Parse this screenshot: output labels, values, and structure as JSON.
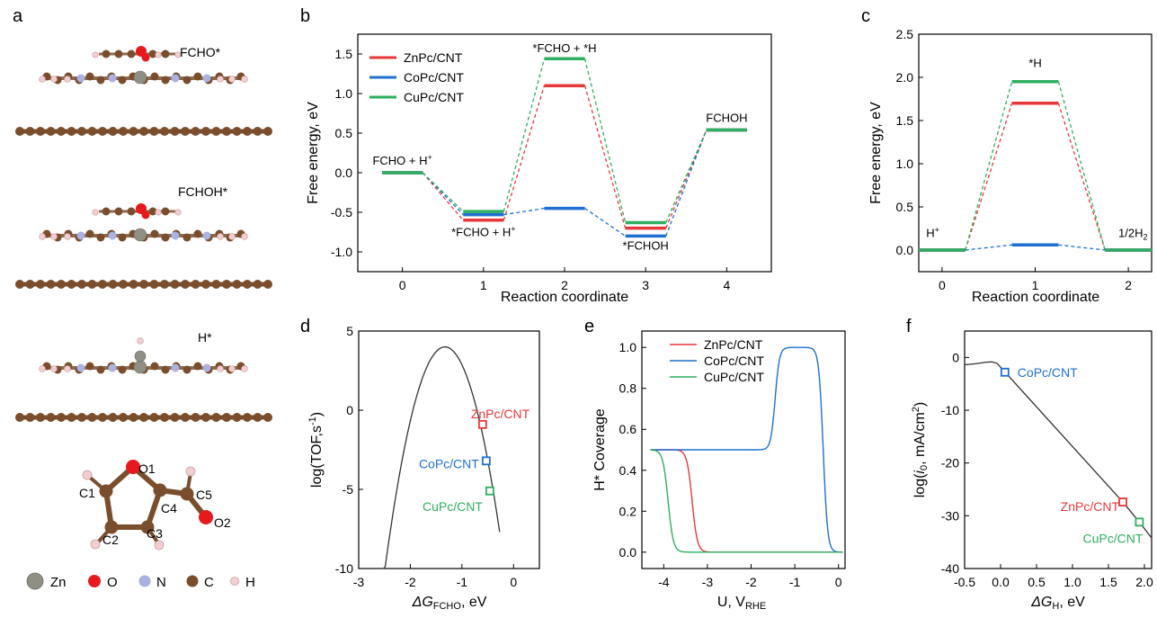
{
  "panel_letters": {
    "a": "a",
    "b": "b",
    "c": "c",
    "d": "d",
    "e": "e",
    "f": "f"
  },
  "colors": {
    "zn": "#e8373a",
    "co": "#1f6fd1",
    "cu": "#2fae5f",
    "atom_c": "#7a4e2d",
    "atom_o": "#e8191d",
    "atom_n": "#a9b2e0",
    "atom_h": "#f3cdd0",
    "atom_zn": "#8f8f86",
    "axis": "#000000",
    "curve": "#333333"
  },
  "structures": {
    "labels": [
      "FCHO*",
      "FCHOH*",
      "H*"
    ],
    "molecule_atoms": [
      "O1",
      "C1",
      "C4",
      "C5",
      "O2",
      "C2",
      "C3"
    ],
    "legend": [
      {
        "label": "Zn",
        "color_key": "atom_zn"
      },
      {
        "label": "O",
        "color_key": "atom_o"
      },
      {
        "label": "N",
        "color_key": "atom_n"
      },
      {
        "label": "C",
        "color_key": "atom_c"
      },
      {
        "label": "H",
        "color_key": "atom_h"
      }
    ]
  },
  "chart_data": [
    {
      "id": "b",
      "type": "line",
      "subtype": "energy-profile",
      "xlabel": "Reaction coordinate",
      "ylabel": "Free energy, eV",
      "xlim": [
        -0.55,
        4.55
      ],
      "ylim": [
        -1.25,
        1.75
      ],
      "xticks": [
        0,
        1,
        2,
        3,
        4
      ],
      "yticks": [
        -1.0,
        -0.5,
        0.0,
        0.5,
        1.0,
        1.5
      ],
      "ytick_labels": [
        "-1.0",
        "-0.5",
        "0.0",
        "0.5",
        "1.0",
        "1.5"
      ],
      "states": [
        0,
        1,
        2,
        3,
        4
      ],
      "series": [
        {
          "name": "ZnPc/CNT",
          "color_key": "zn",
          "values": [
            0.0,
            -0.6,
            1.1,
            -0.7,
            0.54
          ]
        },
        {
          "name": "CoPc/CNT",
          "color_key": "co",
          "values": [
            0.0,
            -0.53,
            -0.45,
            -0.8,
            0.54
          ]
        },
        {
          "name": "CuPc/CNT",
          "color_key": "cu",
          "values": [
            0.0,
            -0.49,
            1.44,
            -0.63,
            0.54
          ]
        }
      ],
      "annotations": [
        {
          "text": "FCHO + H",
          "sup": "+",
          "x": 0,
          "y": 0.1
        },
        {
          "text": "*FCHO + H",
          "sup": "+",
          "x": 1,
          "y": -0.8
        },
        {
          "text": "*FCHO + *H",
          "sup": "",
          "x": 2,
          "y": 1.52
        },
        {
          "text": "*FCHOH",
          "sup": "",
          "x": 3,
          "y": -0.97
        },
        {
          "text": "FCHOH",
          "sup": "",
          "x": 4,
          "y": 0.64
        }
      ]
    },
    {
      "id": "c",
      "type": "line",
      "subtype": "energy-profile",
      "xlabel": "Reaction coordinate",
      "ylabel": "Free energy, eV",
      "xlim": [
        -0.25,
        2.25
      ],
      "ylim": [
        -0.25,
        2.5
      ],
      "xticks": [
        0,
        1,
        2
      ],
      "yticks": [
        0.0,
        0.5,
        1.0,
        1.5,
        2.0,
        2.5
      ],
      "ytick_labels": [
        "0.0",
        "0.5",
        "1.0",
        "1.5",
        "2.0",
        "2.5"
      ],
      "states": [
        0,
        1,
        2
      ],
      "series": [
        {
          "name": "ZnPc/CNT",
          "color_key": "zn",
          "values": [
            0.0,
            1.7,
            0.0
          ]
        },
        {
          "name": "CoPc/CNT",
          "color_key": "co",
          "values": [
            0.0,
            0.06,
            0.0
          ]
        },
        {
          "name": "CuPc/CNT",
          "color_key": "cu",
          "values": [
            0.0,
            1.95,
            0.0
          ]
        }
      ],
      "annotations": [
        {
          "text": "H",
          "sup": "+",
          "x": -0.1,
          "y": 0.15
        },
        {
          "text": "*H",
          "sup": "",
          "x": 1,
          "y": 2.12
        },
        {
          "text": "1/2H",
          "sub": "2",
          "x": 2.05,
          "y": 0.15
        }
      ]
    },
    {
      "id": "d",
      "type": "scatter",
      "subtype": "volcano",
      "xlabel": "ΔG",
      "xlabel_sub": "FCHO",
      "xlabel_unit": ", eV",
      "ylabel": "log(TOF,s",
      "ylabel_sup": "-1",
      "ylabel_tail": ")",
      "xlim": [
        -3,
        0.5
      ],
      "ylim": [
        -10,
        5
      ],
      "xticks": [
        -3,
        -2,
        -1,
        0
      ],
      "yticks": [
        -10,
        -5,
        0,
        5
      ],
      "curve": {
        "vertex_x": -1.33,
        "vertex_y": 4.0,
        "k": 10.4,
        "x_range": [
          -2.57,
          -0.27
        ]
      },
      "points": [
        {
          "name": "ZnPc/CNT",
          "color_key": "zn",
          "x": -0.6,
          "y": -0.9
        },
        {
          "name": "CoPc/CNT",
          "color_key": "co",
          "x": -0.53,
          "y": -3.2
        },
        {
          "name": "CuPc/CNT",
          "color_key": "cu",
          "x": -0.46,
          "y": -5.1
        }
      ]
    },
    {
      "id": "e",
      "type": "line",
      "xlabel": "U, V",
      "xlabel_sub": "RHE",
      "ylabel": "H* Coverage",
      "xlim": [
        -4.5,
        0.15
      ],
      "ylim": [
        -0.08,
        1.08
      ],
      "xticks": [
        -4,
        -3,
        -2,
        -1,
        0
      ],
      "yticks": [
        0.0,
        0.2,
        0.4,
        0.6,
        0.8,
        1.0
      ],
      "ytick_labels": [
        "0.0",
        "0.2",
        "0.4",
        "0.6",
        "0.8",
        "1.0"
      ],
      "series": [
        {
          "name": "ZnPc/CNT",
          "color_key": "zn",
          "shape": [
            {
              "center": -3.35,
              "width": 0.06,
              "from": 0.5,
              "to": 0.0
            }
          ]
        },
        {
          "name": "CoPc/CNT",
          "color_key": "co",
          "shape": [
            {
              "center": -1.45,
              "width": 0.05,
              "from": 0.5,
              "to": 1.0
            },
            {
              "center": -0.35,
              "width": 0.05,
              "from": 1.0,
              "to": 0.0
            }
          ]
        },
        {
          "name": "CuPc/CNT",
          "color_key": "cu",
          "shape": [
            {
              "center": -3.9,
              "width": 0.06,
              "from": 0.5,
              "to": 0.0
            }
          ]
        }
      ]
    },
    {
      "id": "f",
      "type": "scatter",
      "subtype": "volcano",
      "xlabel": "ΔG",
      "xlabel_sub": "H",
      "xlabel_unit": ", eV",
      "ylabel": "log(",
      "ylabel_i": "i",
      "ylabel_sub": "0",
      "ylabel_tail": ", mA/cm",
      "ylabel_sup": "2",
      "ylabel_end": ")",
      "xlim": [
        -0.5,
        2.1
      ],
      "ylim": [
        -40,
        5
      ],
      "xticks": [
        -0.5,
        0.0,
        0.5,
        1.0,
        1.5,
        2.0
      ],
      "xtick_labels": [
        "-0.5",
        "0.0",
        "0.5",
        "1.0",
        "1.5",
        "2.0"
      ],
      "yticks": [
        -40,
        -30,
        -20,
        -10,
        0
      ],
      "curve_points": [
        [
          -0.5,
          -1.4
        ],
        [
          -0.35,
          -1.2
        ],
        [
          -0.2,
          -0.9
        ],
        [
          -0.12,
          -0.85
        ],
        [
          -0.05,
          -1.1
        ],
        [
          0.05,
          -2.6
        ],
        [
          1.7,
          -27.4
        ],
        [
          1.93,
          -31.2
        ],
        [
          2.1,
          -34.2
        ]
      ],
      "points": [
        {
          "name": "CoPc/CNT",
          "color_key": "co",
          "x": 0.06,
          "y": -2.8
        },
        {
          "name": "ZnPc/CNT",
          "color_key": "zn",
          "x": 1.7,
          "y": -27.4
        },
        {
          "name": "CuPc/CNT",
          "color_key": "cu",
          "x": 1.93,
          "y": -31.2
        }
      ]
    }
  ]
}
